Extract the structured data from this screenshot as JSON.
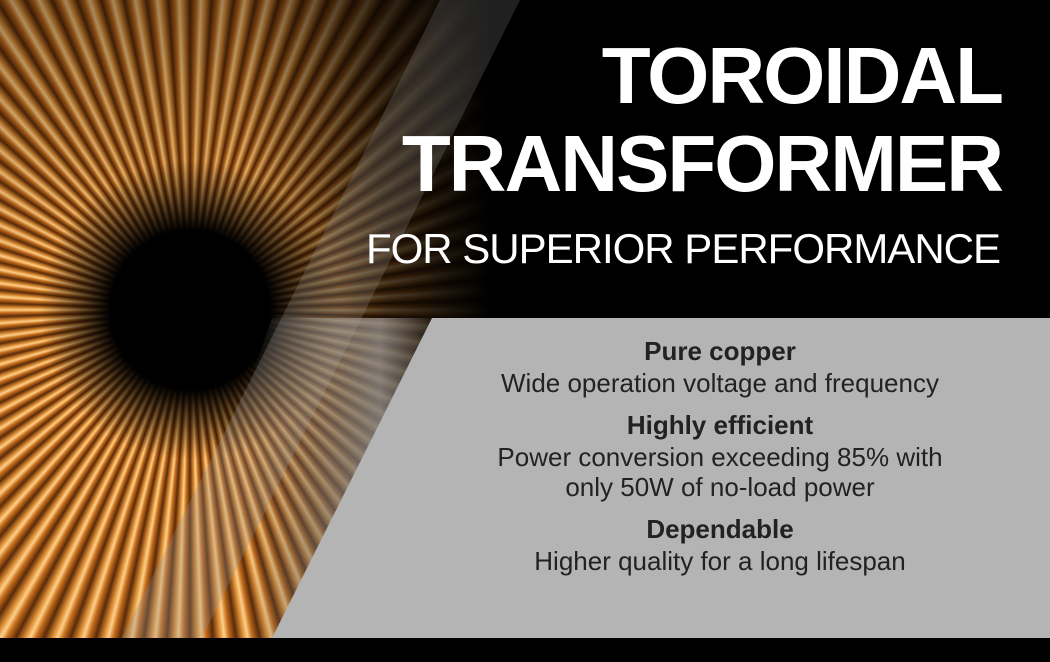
{
  "title_line1": "TOROIDAL",
  "title_line2": "TRANSFORMER",
  "subtitle": "FOR SUPERIOR PERFORMANCE",
  "features": [
    {
      "heading": "Pure copper",
      "lines": [
        "Wide operation voltage and frequency"
      ]
    },
    {
      "heading": "Highly efficient",
      "lines": [
        "Power conversion exceeding 85% with",
        "only 50W of no-load power"
      ]
    },
    {
      "heading": "Dependable",
      "lines": [
        "Higher quality for a long lifespan"
      ]
    }
  ],
  "colors": {
    "background": "#000000",
    "panel": "#b4b4b4",
    "title": "#ffffff",
    "copper": "#c8701e"
  }
}
